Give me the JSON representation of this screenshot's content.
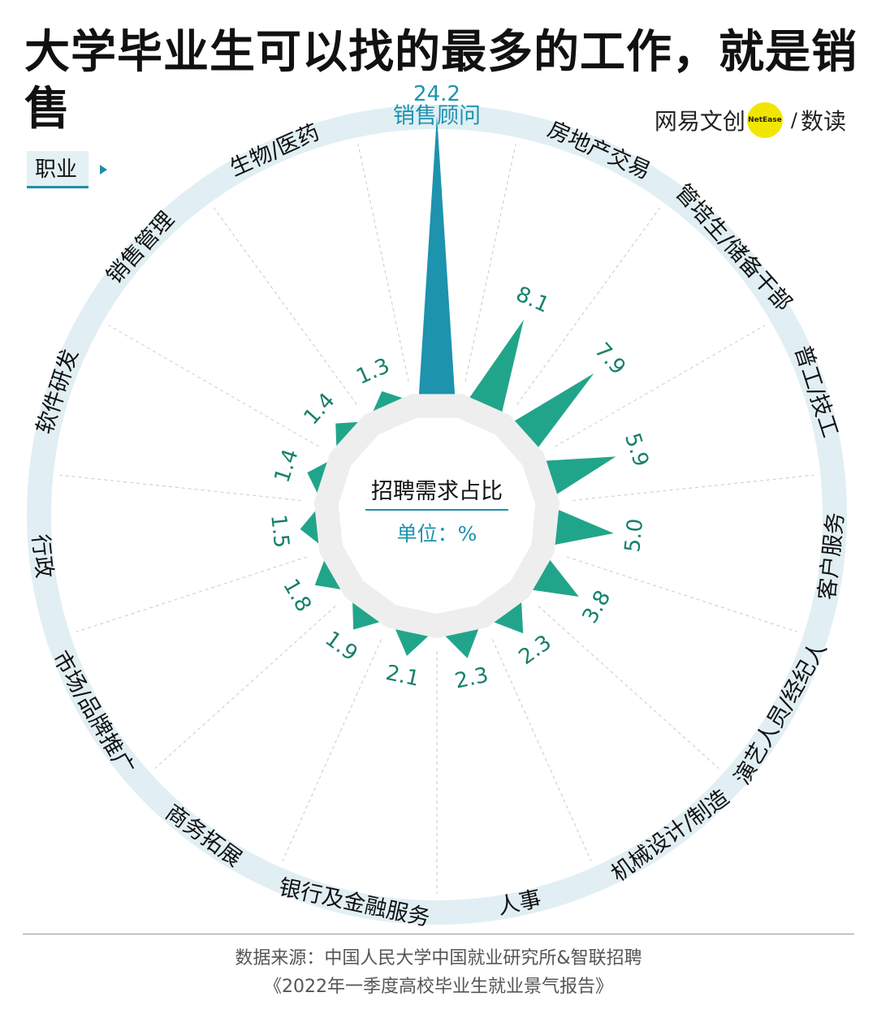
{
  "title": "大学毕业生可以找的最多的工作，就是销售",
  "legend_tag": "职业",
  "brand": {
    "left_text": "网易文创",
    "dot_text": "NetEase",
    "right_text": "数读"
  },
  "center": {
    "label": "招聘需求占比",
    "unit": "单位：%"
  },
  "source": {
    "line1": "数据来源：中国人民大学中国就业研究所&智联招聘",
    "line2": "《2022年一季度高校毕业生就业景气报告》"
  },
  "colors": {
    "highlight": "#1d93ae",
    "normal": "#21a58a",
    "ring": "#e1eff4",
    "center_ring": "#eeeeee",
    "label_text": "#16806b",
    "highlight_text": "#1d93ae"
  },
  "chart_data": {
    "type": "radial-bar",
    "categories": [
      "销售顾问",
      "房地产交易",
      "管培生/储备干部",
      "普工/技工",
      "客户服务",
      "演艺人员/经纪人",
      "机械设计/制造",
      "人事",
      "银行及金融服务",
      "商务拓展",
      "市场/品牌推广",
      "行政",
      "软件研发",
      "销售管理",
      "生物/医药"
    ],
    "values": [
      24.2,
      8.1,
      7.9,
      5.9,
      5.0,
      3.8,
      2.3,
      2.3,
      2.1,
      1.9,
      1.8,
      1.5,
      1.4,
      1.4,
      1.3
    ],
    "value_labels": [
      "24.2",
      "8.1",
      "7.9",
      "5.9",
      "5.0",
      "3.8",
      "2.3",
      "2.3",
      "2.1",
      "1.9",
      "1.8",
      "1.5",
      "1.4",
      "1.4",
      "1.3"
    ],
    "unit": "%",
    "highlight_index": 0
  }
}
